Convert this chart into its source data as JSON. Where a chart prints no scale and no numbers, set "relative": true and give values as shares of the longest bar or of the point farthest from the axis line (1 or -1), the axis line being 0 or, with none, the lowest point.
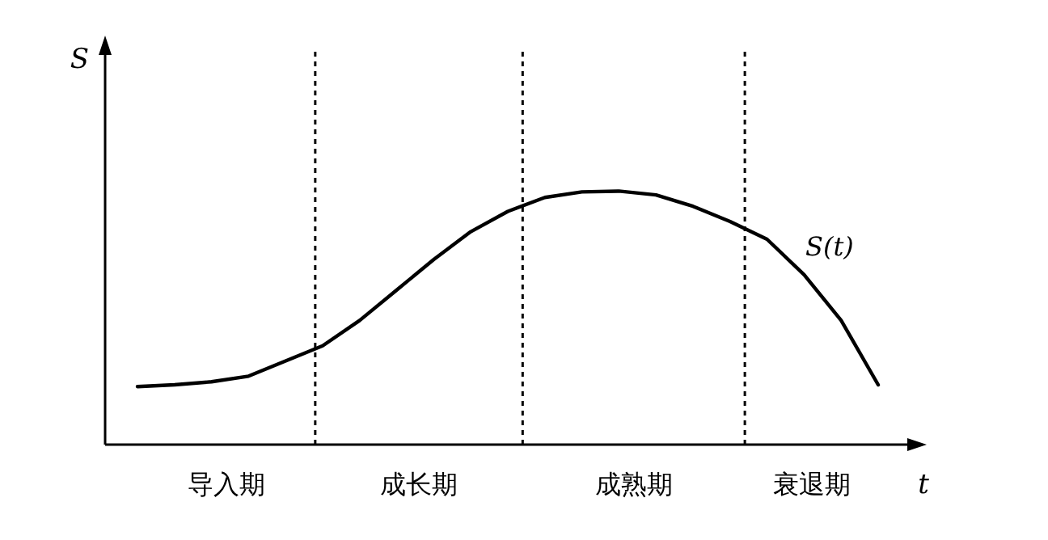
{
  "chart_data": {
    "type": "line",
    "relative": true,
    "xlabel": "t",
    "ylabel": "S",
    "marker": "none",
    "line_style": "solid",
    "categories": [
      null,
      null,
      null,
      null,
      null,
      null,
      null,
      null,
      null,
      null,
      null,
      null,
      null,
      null,
      null,
      null,
      null,
      null,
      null,
      null,
      null
    ],
    "series": [
      {
        "color": "#000000",
        "values": [
          0.229,
          0.236,
          0.248,
          0.27,
          0.33,
          0.39,
          0.49,
          0.61,
          0.73,
          0.84,
          0.92,
          0.975,
          0.997,
          1,
          0.985,
          0.94,
          0.88,
          0.81,
          0.67,
          0.49,
          0.236
        ]
      }
    ],
    "annotations": [
      "S(t)",
      "导入期",
      "成长期",
      "成熟期",
      "衰退期"
    ]
  }
}
